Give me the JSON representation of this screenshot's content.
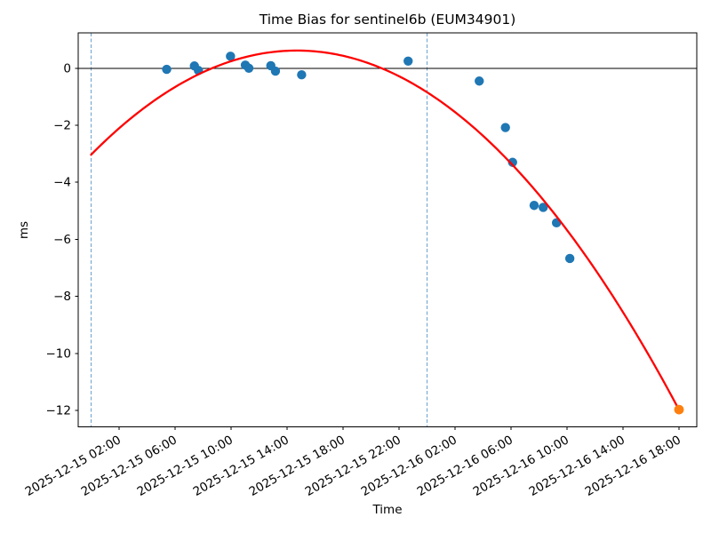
{
  "figure": {
    "background": "#ffffff",
    "frame_color": "#000000"
  },
  "chart_data": {
    "type": "scatter",
    "title": "Time Bias for sentinel6b (EUM34901)",
    "xlabel": "Time",
    "ylabel": "ms",
    "grid": false,
    "legend": null,
    "x_axis": {
      "epoch": "2025-12-15 00:00",
      "xlim_hours": [
        -0.92,
        43.27
      ],
      "tick_hours": [
        2,
        6,
        10,
        14,
        18,
        22,
        26,
        30,
        34,
        38,
        42
      ],
      "tick_labels": [
        "2025-12-15 02:00",
        "2025-12-15 06:00",
        "2025-12-15 10:00",
        "2025-12-15 14:00",
        "2025-12-15 18:00",
        "2025-12-15 22:00",
        "2025-12-16 02:00",
        "2025-12-16 06:00",
        "2025-12-16 10:00",
        "2025-12-16 14:00",
        "2025-12-16 18:00"
      ],
      "label_rotation_deg": 30
    },
    "y_axis": {
      "ylim": [
        -12.58,
        1.24
      ],
      "tick_values": [
        0,
        -2,
        -4,
        -6,
        -8,
        -10,
        -12
      ],
      "tick_labels": [
        "0",
        "−2",
        "−4",
        "−6",
        "−8",
        "−10",
        "−12"
      ]
    },
    "zero_line": {
      "value": 0,
      "color": "#000000"
    },
    "day_boundaries": {
      "color": "#6ba2cc",
      "style": "dashed",
      "lines": [
        {
          "time": "2025-12-15 00:00",
          "hours": 0.0
        },
        {
          "time": "2025-12-16 00:00",
          "hours": 24.0
        }
      ]
    },
    "series": [
      {
        "name": "observations",
        "marker": "circle",
        "color": "#1f77b4",
        "points": [
          {
            "time": "2025-12-15 05:24",
            "hours": 5.4,
            "ms": -0.04
          },
          {
            "time": "2025-12-15 07:23",
            "hours": 7.38,
            "ms": 0.08
          },
          {
            "time": "2025-12-15 07:40",
            "hours": 7.67,
            "ms": -0.08
          },
          {
            "time": "2025-12-15 09:57",
            "hours": 9.96,
            "ms": 0.42
          },
          {
            "time": "2025-12-15 11:01",
            "hours": 11.02,
            "ms": 0.11
          },
          {
            "time": "2025-12-15 11:16",
            "hours": 11.27,
            "ms": 0.0
          },
          {
            "time": "2025-12-15 12:50",
            "hours": 12.84,
            "ms": 0.09
          },
          {
            "time": "2025-12-15 13:10",
            "hours": 13.17,
            "ms": -0.1
          },
          {
            "time": "2025-12-15 15:02",
            "hours": 15.04,
            "ms": -0.23
          },
          {
            "time": "2025-12-15 22:39",
            "hours": 22.65,
            "ms": 0.25
          },
          {
            "time": "2025-12-16 03:44",
            "hours": 27.73,
            "ms": -0.45
          },
          {
            "time": "2025-12-16 05:36",
            "hours": 29.6,
            "ms": -2.08
          },
          {
            "time": "2025-12-16 06:07",
            "hours": 30.11,
            "ms": -3.3
          },
          {
            "time": "2025-12-16 07:39",
            "hours": 31.65,
            "ms": -4.81
          },
          {
            "time": "2025-12-16 08:18",
            "hours": 32.3,
            "ms": -4.88
          },
          {
            "time": "2025-12-16 09:15",
            "hours": 33.25,
            "ms": -5.42
          },
          {
            "time": "2025-12-16 10:12",
            "hours": 34.2,
            "ms": -6.67
          }
        ]
      },
      {
        "name": "latest-observation",
        "marker": "circle",
        "color": "#ff7f0e",
        "points": [
          {
            "time": "2025-12-16 18:00",
            "hours": 42.0,
            "ms": -11.97
          }
        ]
      }
    ],
    "fit_curve": {
      "name": "quadratic-fit",
      "type": "quadratic",
      "color": "#ff0000",
      "a_ms_per_hour2": -0.0169,
      "vertex_hours": 14.7,
      "vertex_ms": 0.62,
      "start_hours": 0.0,
      "end_hours": 42.0
    }
  }
}
